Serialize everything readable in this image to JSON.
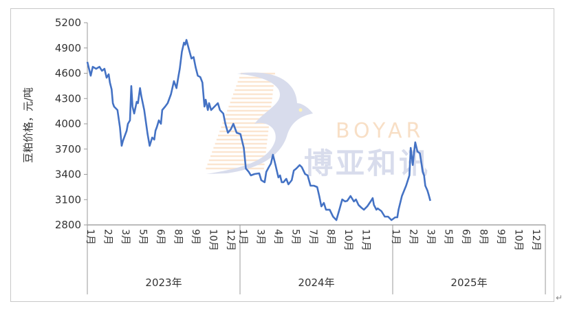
{
  "chart_data": {
    "type": "line",
    "title": "",
    "ylabel": "豆粕价格，元/吨",
    "xlabel": "",
    "ylim": [
      2800,
      5200
    ],
    "yticks": [
      2800,
      3100,
      3400,
      3700,
      4000,
      4300,
      4600,
      4900,
      5200
    ],
    "years": [
      "2023年",
      "2024年",
      "2025年"
    ],
    "month_labels": [
      [
        "1月",
        "2月",
        "3月",
        "5月",
        "6月",
        "8月",
        "9月",
        "10月",
        "12月"
      ],
      [
        "1月",
        "3月",
        "4月",
        "5月",
        "7月",
        "8月",
        "10月",
        "11月"
      ],
      [
        "1月",
        "2月",
        "3月",
        "5月",
        "6月",
        "8月",
        "9月",
        "10月",
        "12月"
      ]
    ],
    "grid": false,
    "legend": "none",
    "line_color": "#4472C4",
    "watermark": {
      "latin": "BOYAR",
      "chinese": "博亚和讯"
    },
    "series": [
      {
        "points": [
          [
            "2023-01-01",
            4735
          ],
          [
            "2023-01-09",
            4571
          ],
          [
            "2023-01-14",
            4677
          ],
          [
            "2023-01-22",
            4653
          ],
          [
            "2023-01-30",
            4677
          ],
          [
            "2023-02-05",
            4629
          ],
          [
            "2023-02-11",
            4653
          ],
          [
            "2023-02-16",
            4547
          ],
          [
            "2023-02-21",
            4588
          ],
          [
            "2023-02-24",
            4490
          ],
          [
            "2023-02-28",
            4408
          ],
          [
            "2023-03-03",
            4245
          ],
          [
            "2023-03-06",
            4204
          ],
          [
            "2023-03-14",
            4163
          ],
          [
            "2023-03-20",
            3959
          ],
          [
            "2023-03-24",
            3739
          ],
          [
            "2023-03-27",
            3796
          ],
          [
            "2023-04-05",
            3918
          ],
          [
            "2023-04-08",
            4000
          ],
          [
            "2023-04-13",
            4041
          ],
          [
            "2023-04-16",
            4449
          ],
          [
            "2023-04-19",
            4204
          ],
          [
            "2023-04-23",
            4122
          ],
          [
            "2023-04-29",
            4261
          ],
          [
            "2023-05-02",
            4245
          ],
          [
            "2023-05-07",
            4424
          ],
          [
            "2023-05-10",
            4327
          ],
          [
            "2023-05-17",
            4163
          ],
          [
            "2023-05-25",
            3878
          ],
          [
            "2023-05-30",
            3739
          ],
          [
            "2023-06-05",
            3837
          ],
          [
            "2023-06-10",
            3812
          ],
          [
            "2023-06-13",
            3918
          ],
          [
            "2023-06-16",
            3959
          ],
          [
            "2023-06-21",
            4041
          ],
          [
            "2023-06-26",
            4000
          ],
          [
            "2023-06-29",
            4163
          ],
          [
            "2023-07-06",
            4204
          ],
          [
            "2023-07-12",
            4245
          ],
          [
            "2023-07-20",
            4351
          ],
          [
            "2023-07-27",
            4506
          ],
          [
            "2023-08-02",
            4424
          ],
          [
            "2023-08-07",
            4571
          ],
          [
            "2023-08-10",
            4653
          ],
          [
            "2023-08-15",
            4857
          ],
          [
            "2023-08-20",
            4963
          ],
          [
            "2023-08-23",
            4939
          ],
          [
            "2023-08-26",
            4996
          ],
          [
            "2023-09-01",
            4882
          ],
          [
            "2023-09-07",
            4775
          ],
          [
            "2023-09-12",
            4792
          ],
          [
            "2023-09-17",
            4669
          ],
          [
            "2023-09-22",
            4571
          ],
          [
            "2023-09-28",
            4555
          ],
          [
            "2023-10-03",
            4490
          ],
          [
            "2023-10-08",
            4204
          ],
          [
            "2023-10-11",
            4286
          ],
          [
            "2023-10-16",
            4163
          ],
          [
            "2023-10-19",
            4245
          ],
          [
            "2023-10-24",
            4163
          ],
          [
            "2023-11-01",
            4204
          ],
          [
            "2023-11-09",
            4245
          ],
          [
            "2023-11-14",
            4163
          ],
          [
            "2023-11-22",
            4122
          ],
          [
            "2023-11-27",
            4000
          ],
          [
            "2023-12-03",
            3894
          ],
          [
            "2023-12-10",
            3935
          ],
          [
            "2023-12-16",
            4000
          ],
          [
            "2023-12-24",
            3894
          ],
          [
            "2024-01-02",
            3878
          ],
          [
            "2024-01-10",
            3714
          ],
          [
            "2024-01-15",
            3469
          ],
          [
            "2024-01-22",
            3429
          ],
          [
            "2024-01-27",
            3388
          ],
          [
            "2024-02-05",
            3404
          ],
          [
            "2024-02-16",
            3412
          ],
          [
            "2024-02-21",
            3331
          ],
          [
            "2024-02-29",
            3306
          ],
          [
            "2024-03-04",
            3429
          ],
          [
            "2024-03-10",
            3486
          ],
          [
            "2024-03-15",
            3527
          ],
          [
            "2024-03-20",
            3633
          ],
          [
            "2024-03-26",
            3510
          ],
          [
            "2024-04-02",
            3363
          ],
          [
            "2024-04-06",
            3388
          ],
          [
            "2024-04-10",
            3306
          ],
          [
            "2024-04-14",
            3306
          ],
          [
            "2024-04-21",
            3347
          ],
          [
            "2024-04-26",
            3282
          ],
          [
            "2024-05-04",
            3331
          ],
          [
            "2024-05-09",
            3445
          ],
          [
            "2024-05-15",
            3469
          ],
          [
            "2024-05-23",
            3510
          ],
          [
            "2024-05-28",
            3486
          ],
          [
            "2024-06-05",
            3404
          ],
          [
            "2024-06-11",
            3388
          ],
          [
            "2024-06-18",
            3265
          ],
          [
            "2024-06-26",
            3265
          ],
          [
            "2024-07-04",
            3249
          ],
          [
            "2024-07-09",
            3143
          ],
          [
            "2024-07-14",
            3020
          ],
          [
            "2024-07-20",
            3061
          ],
          [
            "2024-07-25",
            2980
          ],
          [
            "2024-08-03",
            2980
          ],
          [
            "2024-08-11",
            2898
          ],
          [
            "2024-08-19",
            2857
          ],
          [
            "2024-08-27",
            2996
          ],
          [
            "2024-09-02",
            3102
          ],
          [
            "2024-09-09",
            3078
          ],
          [
            "2024-09-14",
            3086
          ],
          [
            "2024-09-22",
            3143
          ],
          [
            "2024-09-30",
            3078
          ],
          [
            "2024-10-05",
            3102
          ],
          [
            "2024-10-11",
            3037
          ],
          [
            "2024-10-18",
            3004
          ],
          [
            "2024-10-24",
            2980
          ],
          [
            "2024-11-01",
            3020
          ],
          [
            "2024-11-10",
            3086
          ],
          [
            "2024-11-14",
            3118
          ],
          [
            "2024-11-17",
            3037
          ],
          [
            "2024-11-23",
            2980
          ],
          [
            "2024-11-26",
            2996
          ],
          [
            "2024-12-05",
            2963
          ],
          [
            "2024-12-13",
            2898
          ],
          [
            "2024-12-21",
            2898
          ],
          [
            "2024-12-29",
            2857
          ],
          [
            "2025-01-07",
            2890
          ],
          [
            "2025-01-12",
            2890
          ],
          [
            "2025-01-15",
            2980
          ],
          [
            "2025-01-23",
            3143
          ],
          [
            "2025-02-02",
            3265
          ],
          [
            "2025-02-10",
            3388
          ],
          [
            "2025-02-13",
            3714
          ],
          [
            "2025-02-18",
            3510
          ],
          [
            "2025-02-21",
            3657
          ],
          [
            "2025-02-24",
            3780
          ],
          [
            "2025-02-27",
            3714
          ],
          [
            "2025-03-01",
            3673
          ],
          [
            "2025-03-07",
            3649
          ],
          [
            "2025-03-14",
            3429
          ],
          [
            "2025-03-17",
            3388
          ],
          [
            "2025-03-20",
            3265
          ],
          [
            "2025-03-25",
            3208
          ],
          [
            "2025-03-28",
            3159
          ],
          [
            "2025-04-01",
            3086
          ]
        ]
      }
    ]
  }
}
